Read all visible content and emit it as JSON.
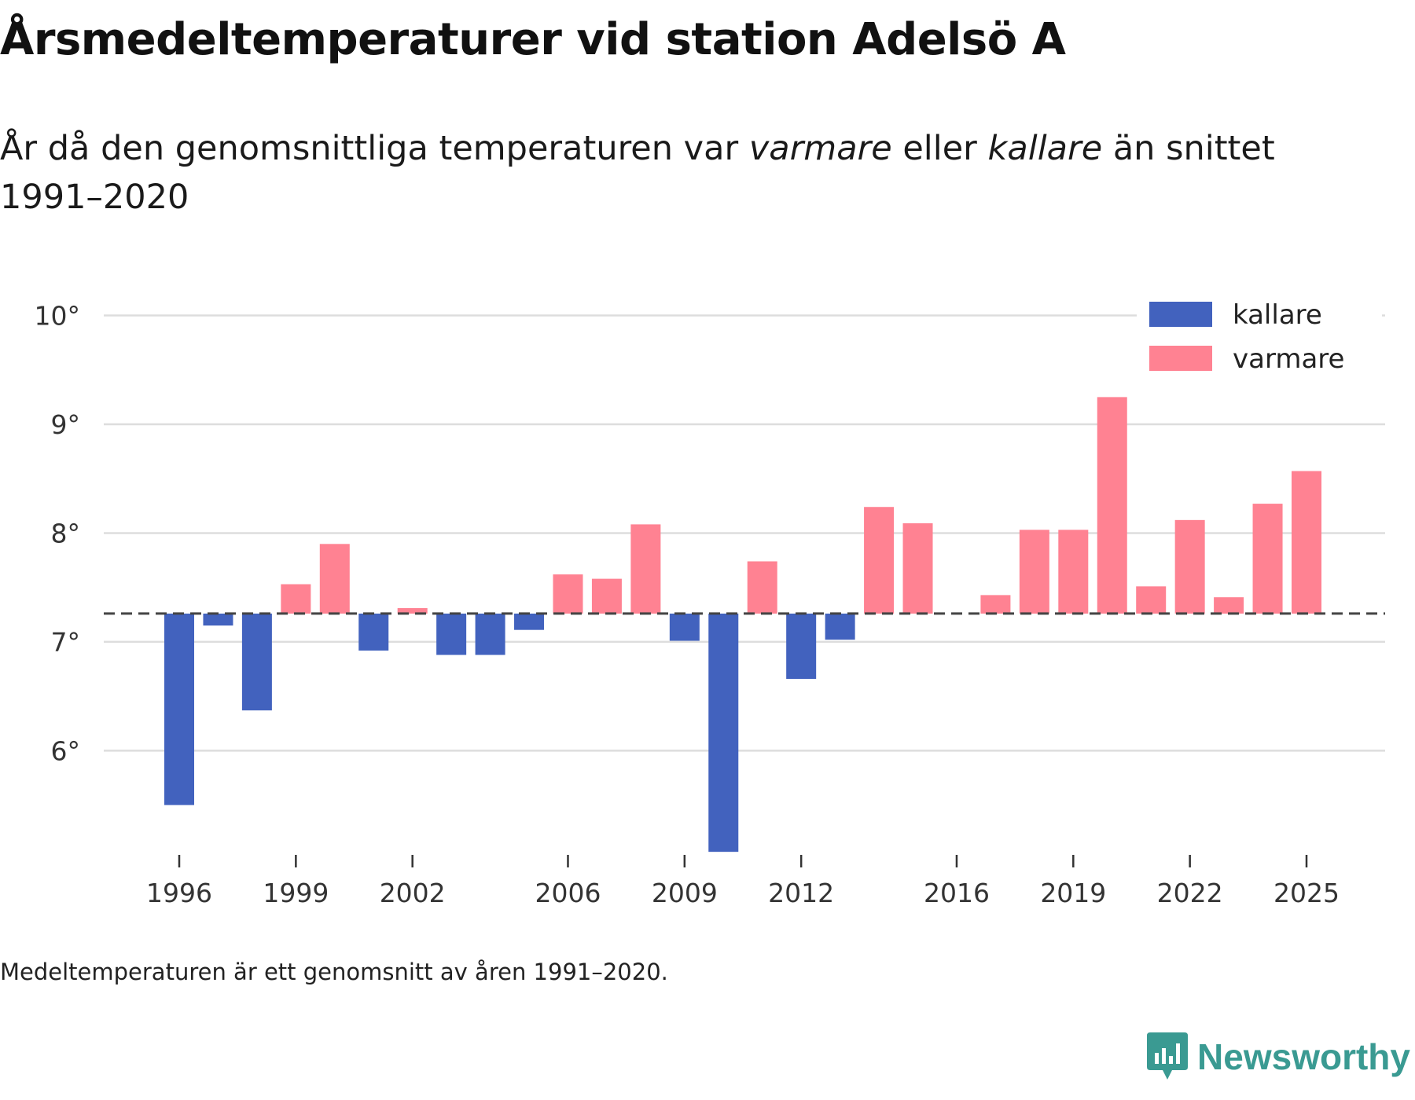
{
  "title": "Årsmedeltemperaturer vid station Adelsö A",
  "subtitle": {
    "part1": "År då den genomsnittliga temperaturen var ",
    "warm_word": "varmare",
    "part2": " eller ",
    "cold_word": "kallare",
    "part3": " än snittet 1991–2020"
  },
  "note": "Medeltemperaturen är ett genomsnitt av åren 1991–2020.",
  "brand": "Newsworthy",
  "colors": {
    "colder": "#4262be",
    "warmer": "#ff8292",
    "grid": "#dddddd",
    "text": "#333333",
    "brand": "#3a9a92"
  },
  "chart_data": {
    "type": "bar",
    "title": "Årsmedeltemperaturer vid station Adelsö A",
    "xlabel": "",
    "ylabel": "",
    "baseline": 7.26,
    "ylim": [
      5.1,
      10.3
    ],
    "yticks": [
      6,
      7,
      8,
      9,
      10
    ],
    "ytick_suffix": "°",
    "xticks": [
      1996,
      1999,
      2002,
      2006,
      2009,
      2012,
      2016,
      2019,
      2022,
      2025
    ],
    "legend": {
      "position": "top-right",
      "colder_label": "kallare",
      "warmer_label": "varmare"
    },
    "categories": [
      1996,
      1997,
      1998,
      1999,
      2000,
      2001,
      2002,
      2003,
      2004,
      2005,
      2006,
      2007,
      2008,
      2009,
      2010,
      2011,
      2012,
      2013,
      2014,
      2015,
      2017,
      2018,
      2019,
      2020,
      2021,
      2022,
      2023,
      2024,
      2025
    ],
    "values": [
      5.5,
      7.15,
      6.37,
      7.53,
      7.9,
      6.92,
      7.31,
      6.88,
      6.88,
      7.11,
      7.62,
      7.58,
      8.08,
      7.01,
      5.07,
      7.74,
      6.66,
      7.02,
      8.24,
      8.09,
      7.43,
      8.03,
      8.03,
      9.25,
      7.51,
      8.12,
      7.41,
      8.27,
      8.57
    ]
  }
}
